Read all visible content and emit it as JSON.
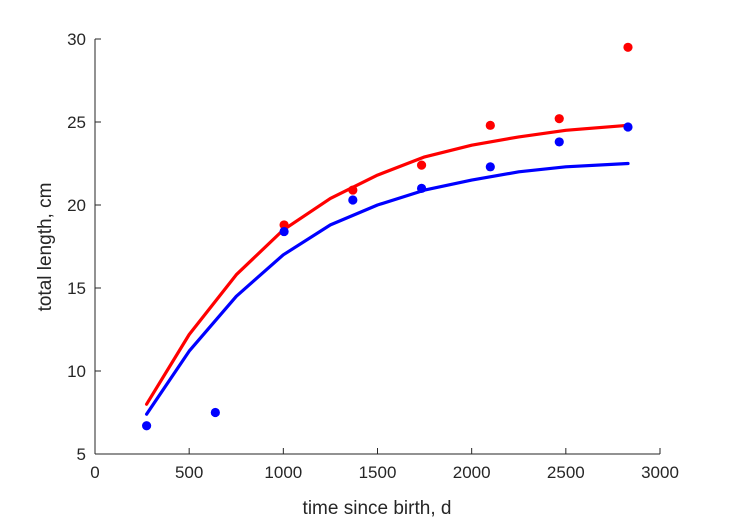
{
  "chart_data": {
    "type": "scatter",
    "xlabel": "time since birth, d",
    "ylabel": "total length, cm",
    "xlim": [
      0,
      3000
    ],
    "ylim": [
      5,
      30
    ],
    "xticks": [
      0,
      500,
      1000,
      1500,
      2000,
      2500,
      3000
    ],
    "yticks": [
      5,
      10,
      15,
      20,
      25,
      30
    ],
    "grid": false,
    "series": [
      {
        "color": "#ff0000",
        "points": [
          {
            "x": 1004,
            "y": 18.8
          },
          {
            "x": 1369,
            "y": 20.9
          },
          {
            "x": 1734,
            "y": 22.4
          },
          {
            "x": 2099,
            "y": 24.8
          },
          {
            "x": 2465,
            "y": 25.2
          },
          {
            "x": 2830,
            "y": 29.5
          }
        ],
        "fit": [
          {
            "x": 274,
            "y": 8.0
          },
          {
            "x": 500,
            "y": 12.2
          },
          {
            "x": 750,
            "y": 15.8
          },
          {
            "x": 1000,
            "y": 18.5
          },
          {
            "x": 1250,
            "y": 20.4
          },
          {
            "x": 1500,
            "y": 21.8
          },
          {
            "x": 1750,
            "y": 22.9
          },
          {
            "x": 2000,
            "y": 23.6
          },
          {
            "x": 2250,
            "y": 24.1
          },
          {
            "x": 2500,
            "y": 24.5
          },
          {
            "x": 2830,
            "y": 24.8
          }
        ]
      },
      {
        "color": "#0000ff",
        "points": [
          {
            "x": 274,
            "y": 6.7
          },
          {
            "x": 639,
            "y": 7.5
          },
          {
            "x": 1004,
            "y": 18.4
          },
          {
            "x": 1369,
            "y": 20.3
          },
          {
            "x": 1734,
            "y": 21.0
          },
          {
            "x": 2099,
            "y": 22.3
          },
          {
            "x": 2465,
            "y": 23.8
          },
          {
            "x": 2830,
            "y": 24.7
          }
        ],
        "fit": [
          {
            "x": 274,
            "y": 7.4
          },
          {
            "x": 500,
            "y": 11.2
          },
          {
            "x": 750,
            "y": 14.5
          },
          {
            "x": 1000,
            "y": 17.0
          },
          {
            "x": 1250,
            "y": 18.8
          },
          {
            "x": 1500,
            "y": 20.0
          },
          {
            "x": 1750,
            "y": 20.9
          },
          {
            "x": 2000,
            "y": 21.5
          },
          {
            "x": 2250,
            "y": 22.0
          },
          {
            "x": 2500,
            "y": 22.3
          },
          {
            "x": 2830,
            "y": 22.5
          }
        ]
      }
    ]
  }
}
